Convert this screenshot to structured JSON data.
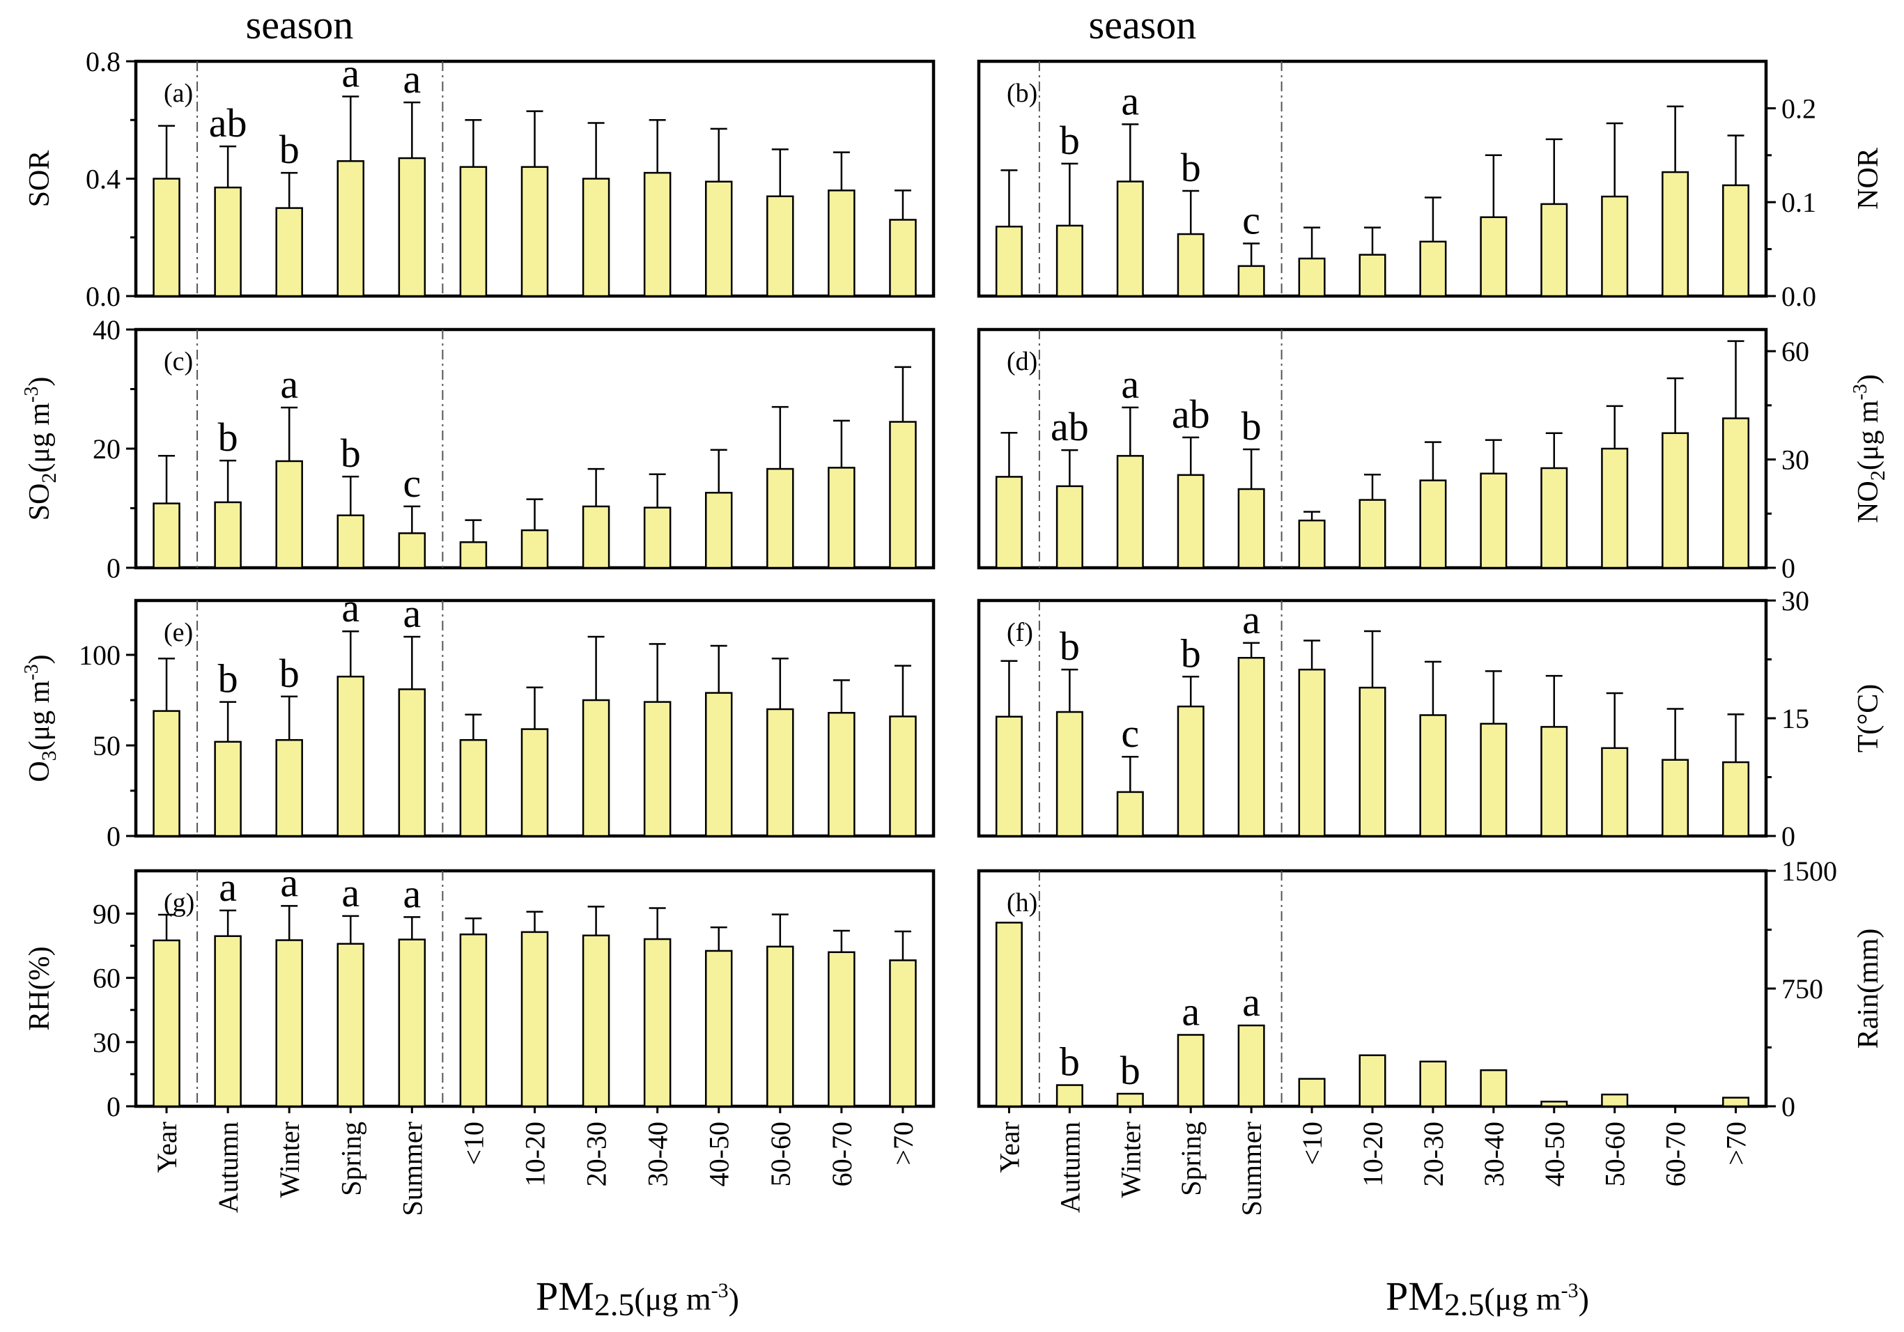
{
  "figure": {
    "header_left": "season",
    "header_right": "season",
    "xlabel_main": "PM",
    "xlabel_sub": "2.5",
    "xlabel_unit_pre": "(μg m",
    "xlabel_unit_sup": "-3",
    "xlabel_unit_post": ")",
    "categories": [
      "Year",
      "Autumn",
      "Winter",
      "Spring",
      "Summer",
      "<10",
      "10-20",
      "20-30",
      "30-40",
      "40-50",
      "50-60",
      "60-70",
      ">70"
    ],
    "categories_display": [
      "Year",
      "Autumn",
      "Winter",
      "Spring",
      "Summer",
      "<10",
      "10-20",
      "20-30",
      "30-40",
      "40-50",
      "50-60",
      "60-70",
      ">70"
    ]
  },
  "colors": {
    "bar": "#f6f29c",
    "edge": "#000000",
    "divider": "#555555"
  },
  "chart_data": [
    {
      "id": "a",
      "panel_label": "(a)",
      "type": "bar",
      "side": "left",
      "ylabel": "SOR",
      "ylim": [
        0,
        0.8
      ],
      "ticks": [
        0.0,
        0.4,
        0.8
      ],
      "tick_labels": [
        "0.0",
        "0.4",
        "0.8"
      ],
      "values": [
        0.4,
        0.37,
        0.3,
        0.46,
        0.47,
        0.44,
        0.44,
        0.4,
        0.42,
        0.39,
        0.34,
        0.36,
        0.26
      ],
      "errors": [
        0.18,
        0.14,
        0.12,
        0.22,
        0.19,
        0.16,
        0.19,
        0.19,
        0.18,
        0.18,
        0.16,
        0.13,
        0.1
      ],
      "letters": [
        "",
        "ab",
        "b",
        "a",
        "a",
        "",
        "",
        "",
        "",
        "",
        "",
        "",
        ""
      ]
    },
    {
      "id": "b",
      "panel_label": "(b)",
      "type": "bar",
      "side": "right",
      "ylabel": "NOR",
      "ylim": [
        0,
        0.25
      ],
      "ticks": [
        0.0,
        0.1,
        0.2
      ],
      "tick_labels": [
        "0.0",
        "0.1",
        "0.2"
      ],
      "values": [
        0.074,
        0.075,
        0.122,
        0.066,
        0.032,
        0.04,
        0.044,
        0.058,
        0.084,
        0.098,
        0.106,
        0.132,
        0.118
      ],
      "errors": [
        0.06,
        0.066,
        0.061,
        0.046,
        0.024,
        0.033,
        0.029,
        0.047,
        0.066,
        0.069,
        0.078,
        0.07,
        0.053
      ],
      "letters": [
        "",
        "b",
        "a",
        "b",
        "c",
        "",
        "",
        "",
        "",
        "",
        "",
        "",
        ""
      ]
    },
    {
      "id": "c",
      "panel_label": "(c)",
      "type": "bar",
      "side": "left",
      "ylabel_main": "SO",
      "ylabel_sub": "2",
      "ylabel_unit_pre": "(μg m",
      "ylabel_unit_sup": "-3",
      "ylabel_unit_post": ")",
      "ylim": [
        0,
        40
      ],
      "ticks": [
        0,
        20,
        40
      ],
      "tick_labels": [
        "0",
        "20",
        "40"
      ],
      "values": [
        10.8,
        11.0,
        17.9,
        8.8,
        5.8,
        4.3,
        6.3,
        10.3,
        10.1,
        12.6,
        16.6,
        16.8,
        24.5
      ],
      "errors": [
        8.0,
        7.0,
        9.0,
        6.5,
        4.5,
        3.7,
        5.2,
        6.3,
        5.6,
        7.2,
        10.4,
        7.9,
        9.2
      ],
      "letters": [
        "",
        "b",
        "a",
        "b",
        "c",
        "",
        "",
        "",
        "",
        "",
        "",
        "",
        ""
      ]
    },
    {
      "id": "d",
      "panel_label": "(d)",
      "type": "bar",
      "side": "right",
      "ylabel_main": "NO",
      "ylabel_sub": "2",
      "ylabel_unit_pre": "(μg m",
      "ylabel_unit_sup": "-3",
      "ylabel_unit_post": ")",
      "ylim": [
        0,
        66
      ],
      "ticks": [
        0,
        30,
        60
      ],
      "tick_labels": [
        "0",
        "30",
        "60"
      ],
      "values": [
        25.2,
        22.6,
        31.0,
        25.7,
        21.8,
        13.1,
        18.8,
        24.2,
        26.1,
        27.6,
        33.0,
        37.3,
        41.4
      ],
      "errors": [
        12.2,
        10.0,
        13.4,
        10.4,
        11.0,
        2.4,
        7.0,
        10.6,
        9.3,
        9.7,
        11.8,
        15.2,
        21.4
      ],
      "letters": [
        "",
        "ab",
        "a",
        "ab",
        "b",
        "",
        "",
        "",
        "",
        "",
        "",
        "",
        ""
      ]
    },
    {
      "id": "e",
      "panel_label": "(e)",
      "type": "bar",
      "side": "left",
      "ylabel_main": "O",
      "ylabel_sub": "3",
      "ylabel_unit_pre": "(μg m",
      "ylabel_unit_sup": "-3",
      "ylabel_unit_post": ")",
      "ylim": [
        0,
        130
      ],
      "ticks": [
        0,
        50,
        100
      ],
      "tick_labels": [
        "0",
        "50",
        "100"
      ],
      "values": [
        69,
        52,
        53,
        88,
        81,
        53,
        59,
        75,
        74,
        79,
        70,
        68,
        66
      ],
      "errors": [
        29,
        22,
        24,
        25,
        29,
        14,
        23,
        35,
        32,
        26,
        28,
        18,
        28
      ],
      "letters": [
        "",
        "b",
        "b",
        "a",
        "a",
        "",
        "",
        "",
        "",
        "",
        "",
        "",
        ""
      ]
    },
    {
      "id": "f",
      "panel_label": "(f)",
      "type": "bar",
      "side": "right",
      "ylabel": "T(°C)",
      "ylim": [
        0,
        30
      ],
      "ticks": [
        0,
        15,
        30
      ],
      "tick_labels": [
        "0",
        "15",
        "30"
      ],
      "values": [
        15.2,
        15.8,
        5.6,
        16.5,
        22.7,
        21.2,
        18.9,
        15.4,
        14.3,
        13.9,
        11.2,
        9.7,
        9.4
      ],
      "errors": [
        7.1,
        5.4,
        4.5,
        3.8,
        1.9,
        3.7,
        7.2,
        6.8,
        6.7,
        6.5,
        7.0,
        6.5,
        6.1
      ],
      "letters": [
        "",
        "b",
        "c",
        "b",
        "a",
        "",
        "",
        "",
        "",
        "",
        "",
        "",
        ""
      ]
    },
    {
      "id": "g",
      "panel_label": "(g)",
      "type": "bar",
      "side": "left",
      "ylabel": "RH(%)",
      "ylim": [
        0,
        110
      ],
      "ticks": [
        0,
        30,
        60,
        90
      ],
      "tick_labels": [
        "0",
        "30",
        "60",
        "90"
      ],
      "values": [
        77.5,
        79.5,
        77.6,
        75.9,
        77.9,
        80.3,
        81.4,
        79.8,
        78.1,
        72.6,
        74.6,
        72.0,
        68.2
      ],
      "errors": [
        12.0,
        12.0,
        16.0,
        13.0,
        10.5,
        7.5,
        9.5,
        13.5,
        14.5,
        11.0,
        15.0,
        10.0,
        13.5
      ],
      "letters": [
        "",
        "a",
        "a",
        "a",
        "a",
        "",
        "",
        "",
        "",
        "",
        "",
        "",
        ""
      ]
    },
    {
      "id": "h",
      "panel_label": "(h)",
      "type": "bar",
      "side": "right",
      "ylabel": "Rain(mm)",
      "ylim": [
        0,
        1500
      ],
      "ticks": [
        0,
        750,
        1500
      ],
      "tick_labels": [
        "0",
        "750",
        "1500"
      ],
      "values": [
        1170,
        135,
        80,
        455,
        515,
        175,
        325,
        285,
        230,
        30,
        75,
        0,
        55
      ],
      "errors": [
        0,
        0,
        0,
        0,
        0,
        0,
        0,
        0,
        0,
        0,
        0,
        0,
        0
      ],
      "letters": [
        "",
        "b",
        "b",
        "a",
        "a",
        "",
        "",
        "",
        "",
        "",
        "",
        "",
        ""
      ]
    }
  ]
}
